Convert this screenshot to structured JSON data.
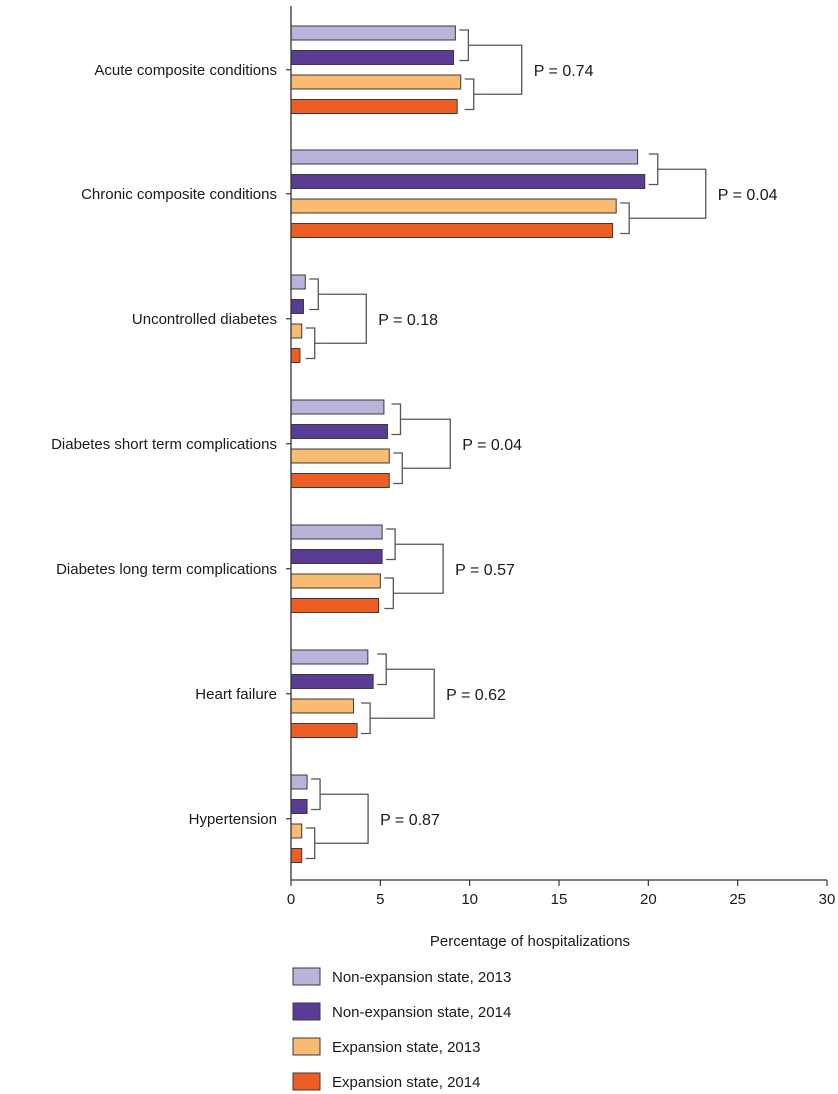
{
  "chart_data": {
    "type": "bar",
    "orientation": "horizontal",
    "title": "",
    "xlabel": "Percentage of hospitalizations",
    "ylabel": "",
    "xlim": [
      0,
      30
    ],
    "xticks": [
      0,
      5,
      10,
      15,
      20,
      25,
      30
    ],
    "grid": false,
    "legend_position": "bottom-left",
    "categories": [
      "Acute composite conditions",
      "Chronic composite conditions",
      "Uncontrolled diabetes",
      "Diabetes short term complications",
      "Diabetes long term complications",
      "Heart failure",
      "Hypertension"
    ],
    "series": [
      {
        "name": "Non-expansion state, 2013",
        "color": "#b8b4da",
        "values": [
          9.2,
          19.4,
          0.8,
          5.2,
          5.1,
          4.3,
          0.9
        ]
      },
      {
        "name": "Non-expansion state, 2014",
        "color": "#5a3c96",
        "values": [
          9.1,
          19.8,
          0.7,
          5.4,
          5.1,
          4.6,
          0.9
        ]
      },
      {
        "name": "Expansion state, 2013",
        "color": "#f9bb72",
        "values": [
          9.5,
          18.2,
          0.6,
          5.5,
          5.0,
          3.5,
          0.6
        ]
      },
      {
        "name": "Expansion state, 2014",
        "color": "#ed5e24",
        "values": [
          9.3,
          18.0,
          0.5,
          5.5,
          4.9,
          3.7,
          0.6
        ]
      }
    ],
    "annotations": [
      "P = 0.74",
      "P = 0.04",
      "P = 0.18",
      "P = 0.04",
      "P = 0.57",
      "P = 0.62",
      "P = 0.87"
    ]
  }
}
